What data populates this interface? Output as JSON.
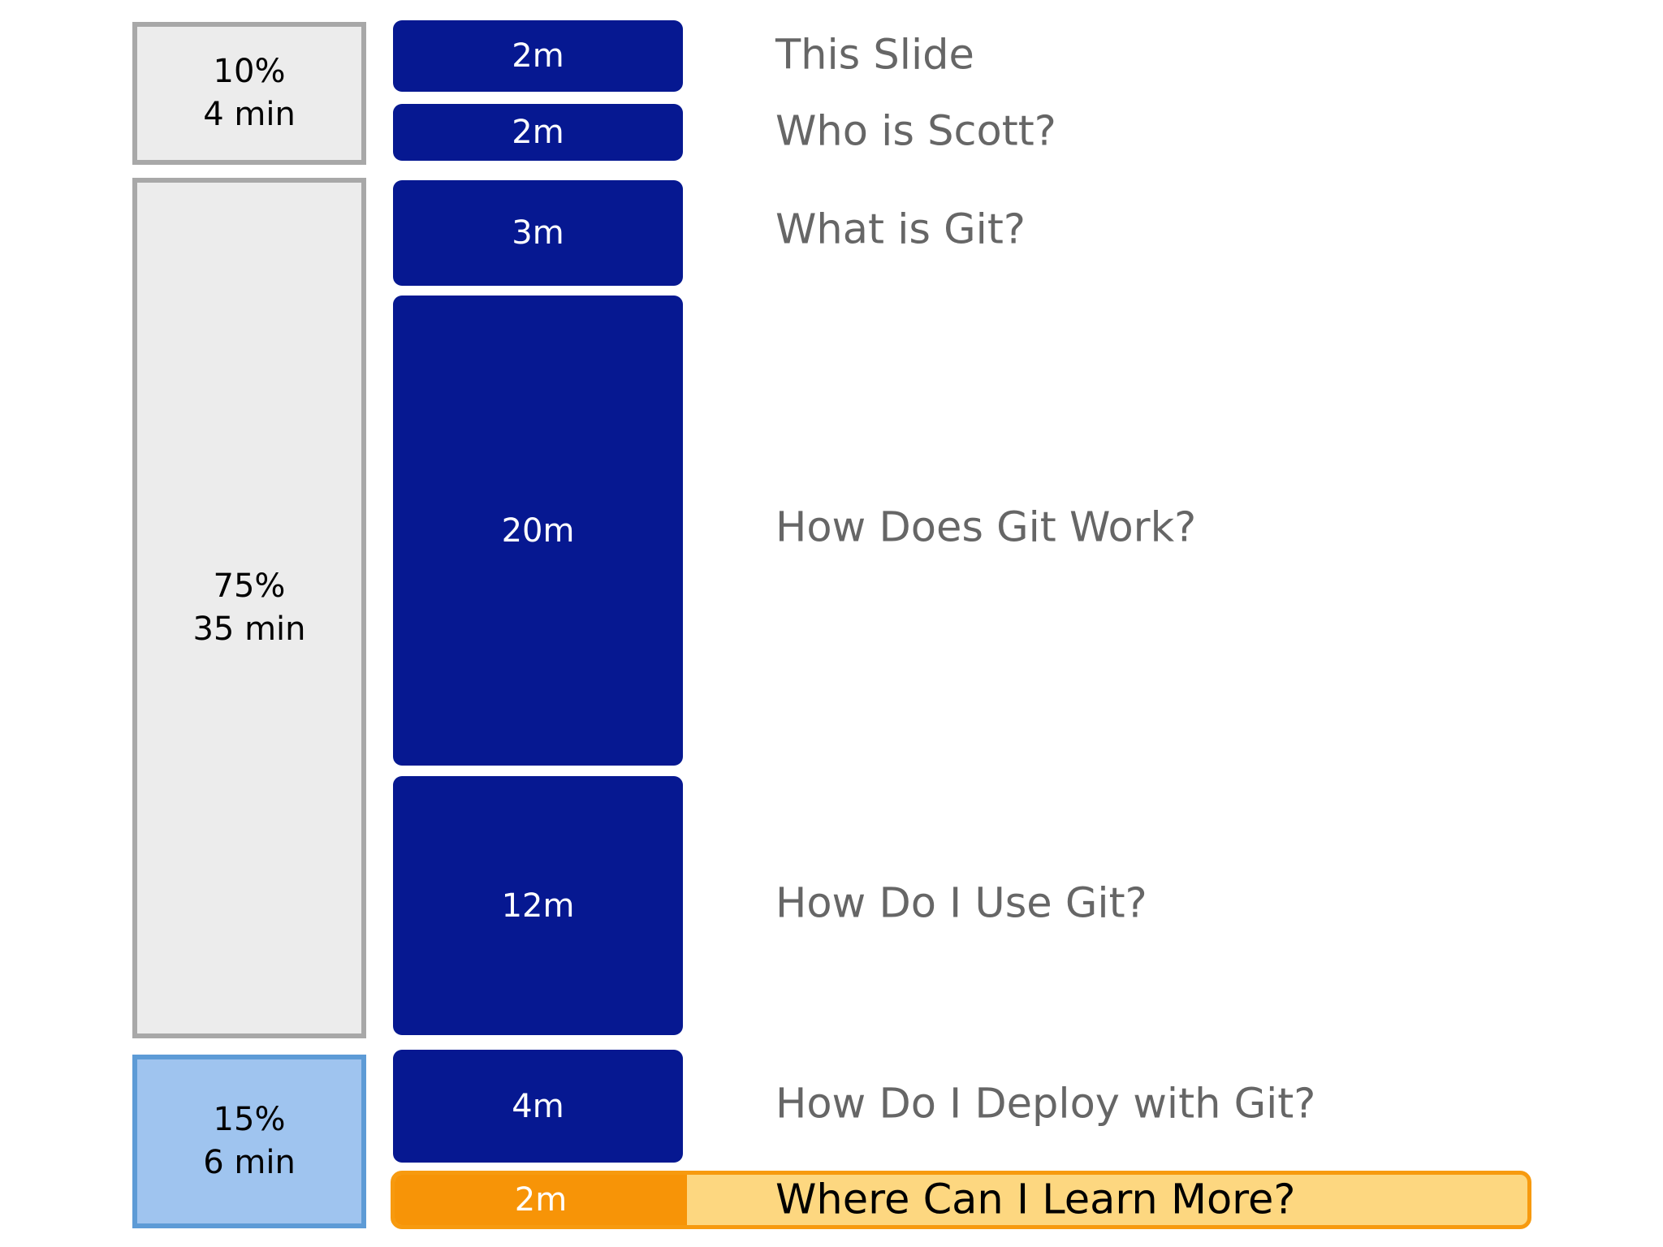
{
  "sections": [
    {
      "percent": "10%",
      "duration": "4 min"
    },
    {
      "percent": "75%",
      "duration": "35 min"
    },
    {
      "percent": "15%",
      "duration": "6 min",
      "active": true
    }
  ],
  "agenda": [
    {
      "duration": "2m",
      "title": "This Slide"
    },
    {
      "duration": "2m",
      "title": "Who is Scott?"
    },
    {
      "duration": "3m",
      "title": "What is Git?"
    },
    {
      "duration": "20m",
      "title": "How Does Git Work?"
    },
    {
      "duration": "12m",
      "title": "How Do I Use Git?"
    },
    {
      "duration": "4m",
      "title": "How Do I Deploy with Git?"
    },
    {
      "duration": "2m",
      "title": "Where Can I Learn More?",
      "current": true
    }
  ],
  "colors": {
    "block": "#061891",
    "section_fill": "#ececec",
    "section_border": "#a8a8a8",
    "active_section_fill": "#9fc4ef",
    "active_section_border": "#5d9bd6",
    "current_item_fill": "#f79407",
    "current_row_fill": "#fdd780",
    "label_text": "#666666"
  }
}
